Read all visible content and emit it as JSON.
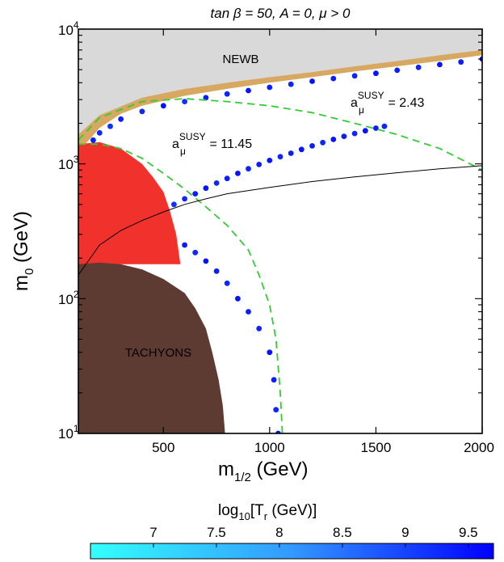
{
  "chart_data": {
    "type": "scatter",
    "title": "tan β = 50, A = 0, μ > 0",
    "xlabel": {
      "main": "m",
      "sub": "1/2",
      "rest": " (GeV)"
    },
    "ylabel": {
      "main": "m",
      "sub": "0",
      "rest": " (GeV)"
    },
    "xlim": [
      100,
      2000
    ],
    "ylim": [
      10,
      10000
    ],
    "yscale": "log",
    "x_ticks": [
      500,
      1000,
      1500,
      2000
    ],
    "x_tick_labels": [
      "500",
      "1000",
      "1500",
      "2000"
    ],
    "y_ticks": [
      10,
      100,
      1000,
      10000
    ],
    "y_tick_labels": [
      {
        "base": "10",
        "exp": "1"
      },
      {
        "base": "10",
        "exp": "2"
      },
      {
        "base": "10",
        "exp": "3"
      },
      {
        "base": "10",
        "exp": "4"
      }
    ],
    "regions": [
      {
        "name": "NEWB",
        "label": "NEWB",
        "color": "#d9d9d9",
        "boundary": [
          [
            100,
            1650
          ],
          [
            200,
            2300
          ],
          [
            400,
            3100
          ],
          [
            600,
            3600
          ],
          [
            800,
            4000
          ],
          [
            1000,
            4400
          ],
          [
            1200,
            4800
          ],
          [
            1400,
            5300
          ],
          [
            1600,
            5800
          ],
          [
            1800,
            6400
          ],
          [
            2000,
            7000
          ]
        ]
      },
      {
        "name": "orange-band",
        "label": "",
        "color": "#d7a862",
        "upper": [
          [
            100,
            1650
          ],
          [
            200,
            2300
          ],
          [
            400,
            3100
          ],
          [
            600,
            3600
          ],
          [
            800,
            4000
          ],
          [
            1000,
            4400
          ],
          [
            1200,
            4800
          ],
          [
            1400,
            5300
          ],
          [
            1600,
            5800
          ],
          [
            1800,
            6400
          ],
          [
            2000,
            7000
          ]
        ],
        "lower": [
          [
            100,
            1250
          ],
          [
            150,
            1500
          ],
          [
            200,
            1850
          ],
          [
            300,
            2350
          ],
          [
            400,
            2700
          ],
          [
            600,
            3200
          ],
          [
            800,
            3600
          ],
          [
            1000,
            4000
          ],
          [
            1200,
            4400
          ],
          [
            1400,
            4850
          ],
          [
            1600,
            5300
          ],
          [
            1800,
            5800
          ],
          [
            2000,
            6400
          ]
        ]
      },
      {
        "name": "red-region",
        "label": "",
        "color": "#f1322c",
        "boundary": [
          [
            100,
            1400
          ],
          [
            200,
            1450
          ],
          [
            300,
            1300
          ],
          [
            400,
            1000
          ],
          [
            450,
            800
          ],
          [
            500,
            620
          ],
          [
            530,
            450
          ],
          [
            560,
            300
          ],
          [
            580,
            180
          ],
          [
            100,
            180
          ]
        ]
      },
      {
        "name": "TACHYONS",
        "label": "TACHYONS",
        "color": "#5d3a32",
        "boundary": [
          [
            100,
            180
          ],
          [
            200,
            185
          ],
          [
            300,
            180
          ],
          [
            400,
            165
          ],
          [
            500,
            140
          ],
          [
            600,
            110
          ],
          [
            650,
            85
          ],
          [
            700,
            60
          ],
          [
            730,
            40
          ],
          [
            760,
            25
          ],
          [
            780,
            16
          ],
          [
            790,
            10
          ],
          [
            100,
            10
          ]
        ]
      }
    ],
    "scatter_series": [
      {
        "name": "upper-band",
        "color_by": "log10_Tr",
        "points": [
          [
            170,
            1500,
            9.4
          ],
          [
            200,
            1700,
            9.3
          ],
          [
            250,
            1900,
            9.2
          ],
          [
            300,
            2150,
            9.4
          ],
          [
            400,
            2450,
            9.3
          ],
          [
            500,
            2700,
            9.5
          ],
          [
            600,
            2900,
            9.2
          ],
          [
            700,
            3100,
            9.4
          ],
          [
            800,
            3300,
            9.3
          ],
          [
            900,
            3500,
            9.5
          ],
          [
            1000,
            3700,
            9.4
          ],
          [
            1100,
            3900,
            9.3
          ],
          [
            1200,
            4100,
            9.5
          ],
          [
            1300,
            4300,
            9.4
          ],
          [
            1400,
            4500,
            9.3
          ],
          [
            1500,
            4700,
            9.5
          ],
          [
            1600,
            4950,
            9.4
          ],
          [
            1700,
            5200,
            9.3
          ],
          [
            1800,
            5450,
            9.5
          ],
          [
            1900,
            5700,
            9.4
          ],
          [
            2000,
            6000,
            9.5
          ]
        ]
      },
      {
        "name": "diagonal-band",
        "color_by": "log10_Tr",
        "points": [
          [
            550,
            500,
            9.2
          ],
          [
            600,
            550,
            9.3
          ],
          [
            650,
            600,
            9.4
          ],
          [
            700,
            660,
            9.5
          ],
          [
            750,
            720,
            9.3
          ],
          [
            800,
            780,
            9.4
          ],
          [
            850,
            850,
            9.5
          ],
          [
            900,
            920,
            9.3
          ],
          [
            950,
            990,
            9.4
          ],
          [
            1000,
            1060,
            9.5
          ],
          [
            1050,
            1130,
            9.3
          ],
          [
            1100,
            1200,
            9.4
          ],
          [
            1150,
            1280,
            9.5
          ],
          [
            1200,
            1360,
            9.4
          ],
          [
            1250,
            1440,
            9.3
          ],
          [
            1300,
            1520,
            9.5
          ],
          [
            1350,
            1600,
            9.4
          ],
          [
            1400,
            1680,
            9.3
          ],
          [
            1450,
            1760,
            9.5
          ],
          [
            1500,
            1840,
            9.4
          ],
          [
            1540,
            1900,
            9.3
          ]
        ]
      },
      {
        "name": "stau-band",
        "color_by": "log10_Tr",
        "points": [
          [
            600,
            250,
            9.4
          ],
          [
            650,
            220,
            9.3
          ],
          [
            700,
            190,
            9.5
          ],
          [
            750,
            160,
            9.4
          ],
          [
            800,
            130,
            9.3
          ],
          [
            850,
            100,
            9.5
          ],
          [
            900,
            80,
            9.4
          ],
          [
            950,
            60,
            9.3
          ],
          [
            1000,
            40,
            9.5
          ],
          [
            1020,
            25,
            9.4
          ],
          [
            1030,
            15,
            9.3
          ],
          [
            1040,
            10,
            9.5
          ]
        ]
      }
    ],
    "lines": [
      {
        "name": "a_mu-2.43",
        "label": "",
        "color": "#33cc33",
        "style": "dashed",
        "points": [
          [
            100,
            1500
          ],
          [
            200,
            2200
          ],
          [
            400,
            2900
          ],
          [
            600,
            3050
          ],
          [
            800,
            2900
          ],
          [
            1000,
            2700
          ],
          [
            1200,
            2400
          ],
          [
            1400,
            2000
          ],
          [
            1600,
            1650
          ],
          [
            1800,
            1300
          ],
          [
            2000,
            900
          ]
        ]
      },
      {
        "name": "a_mu-11.45",
        "label": "",
        "color": "#33cc33",
        "style": "dashed",
        "points": [
          [
            100,
            1400
          ],
          [
            200,
            1400
          ],
          [
            300,
            1300
          ],
          [
            400,
            1100
          ],
          [
            500,
            850
          ],
          [
            600,
            650
          ],
          [
            700,
            480
          ],
          [
            800,
            350
          ],
          [
            900,
            230
          ],
          [
            950,
            150
          ],
          [
            1000,
            90
          ],
          [
            1030,
            50
          ],
          [
            1050,
            20
          ],
          [
            1060,
            10
          ]
        ]
      },
      {
        "name": "black-line",
        "label": "",
        "color": "#000000",
        "style": "solid",
        "points": [
          [
            100,
            150
          ],
          [
            200,
            250
          ],
          [
            300,
            320
          ],
          [
            400,
            380
          ],
          [
            500,
            440
          ],
          [
            600,
            500
          ],
          [
            700,
            550
          ],
          [
            800,
            600
          ],
          [
            1000,
            670
          ],
          [
            1200,
            740
          ],
          [
            1400,
            800
          ],
          [
            1600,
            860
          ],
          [
            1800,
            920
          ],
          [
            2000,
            970
          ]
        ]
      }
    ],
    "annotations": [
      {
        "name": "a-mu-susy-2.43",
        "base": "a",
        "sub": "μ",
        "sup": "SUSY",
        "rest": " = 2.43",
        "x": 1340,
        "y": 2350
      },
      {
        "name": "a-mu-susy-11.45",
        "base": "a",
        "sub": "μ",
        "sup": "SUSY",
        "rest": " = 11.45",
        "x": 440,
        "y": 1150
      }
    ],
    "colorbar": {
      "label": {
        "main": "log",
        "sub": "10",
        "mid": "[T",
        "sub2": "r",
        "rest": " (GeV)]"
      },
      "range": [
        6.5,
        9.7
      ],
      "ticks": [
        7,
        7.5,
        8,
        8.5,
        9,
        9.5
      ],
      "tick_labels": [
        "7",
        "7.5",
        "8",
        "8.5",
        "9",
        "9.5"
      ],
      "colors": [
        "#33ffff",
        "#3399ff",
        "#0000ff"
      ]
    }
  }
}
